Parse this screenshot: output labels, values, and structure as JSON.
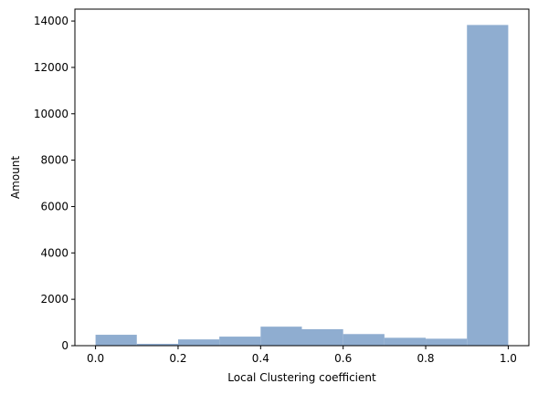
{
  "chart_data": {
    "type": "bar",
    "subtype": "histogram",
    "title": "",
    "xlabel": "Local Clustering coefficient",
    "ylabel": "Amount",
    "bins": [
      {
        "x0": 0.0,
        "x1": 0.1,
        "value": 470
      },
      {
        "x0": 0.1,
        "x1": 0.2,
        "value": 80
      },
      {
        "x0": 0.2,
        "x1": 0.3,
        "value": 270
      },
      {
        "x0": 0.3,
        "x1": 0.4,
        "value": 390
      },
      {
        "x0": 0.4,
        "x1": 0.5,
        "value": 820
      },
      {
        "x0": 0.5,
        "x1": 0.6,
        "value": 710
      },
      {
        "x0": 0.6,
        "x1": 0.7,
        "value": 500
      },
      {
        "x0": 0.7,
        "x1": 0.8,
        "value": 340
      },
      {
        "x0": 0.8,
        "x1": 0.9,
        "value": 300
      },
      {
        "x0": 0.9,
        "x1": 1.0,
        "value": 13830
      }
    ],
    "xlim": [
      -0.05,
      1.05
    ],
    "ylim": [
      0,
      14514
    ],
    "xticks": [
      0.0,
      0.2,
      0.4,
      0.6,
      0.8,
      1.0
    ],
    "xtick_labels": [
      "0.0",
      "0.2",
      "0.4",
      "0.6",
      "0.8",
      "1.0"
    ],
    "yticks": [
      0,
      2000,
      4000,
      6000,
      8000,
      10000,
      12000,
      14000
    ],
    "ytick_labels": [
      "0",
      "2000",
      "4000",
      "6000",
      "8000",
      "10000",
      "12000",
      "14000"
    ],
    "bar_color": "#8fadd0",
    "grid": false,
    "legend": "none"
  }
}
